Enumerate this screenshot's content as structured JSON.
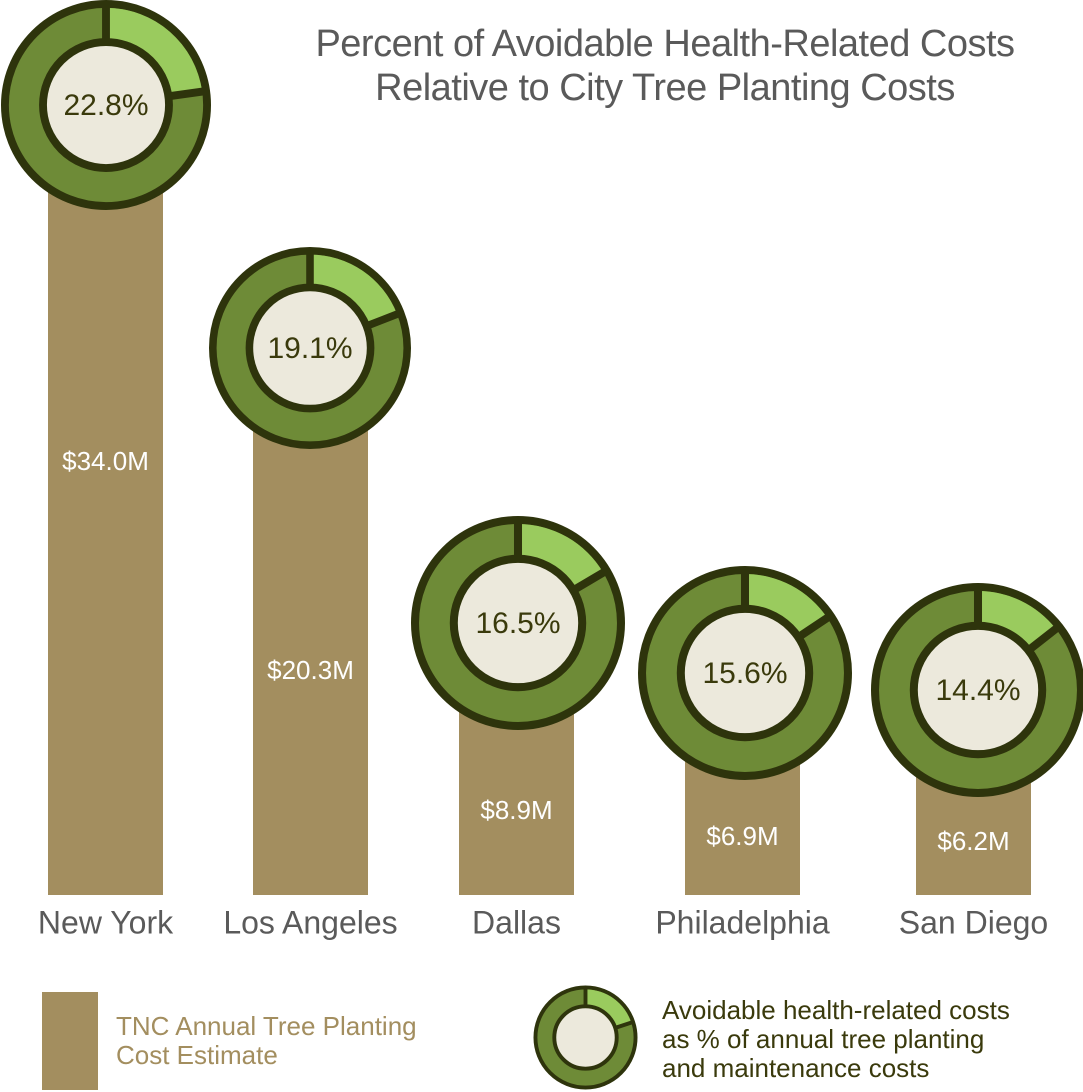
{
  "chart_data": {
    "type": "bar",
    "title": "Percent of Avoidable Health-Related Costs Relative to City Tree Planting Costs",
    "title_lines": [
      "Percent of Avoidable Health-Related Costs",
      "Relative to City Tree Planting Costs"
    ],
    "xlabel": "",
    "ylabel": "",
    "categories": [
      "New York",
      "Los Angeles",
      "Dallas",
      "Philadelphia",
      "San Diego"
    ],
    "series": [
      {
        "name": "TNC Annual Tree Planting Cost Estimate",
        "unit": "$M",
        "values": [
          34.0,
          20.3,
          8.9,
          6.9,
          6.2
        ],
        "labels": [
          "$34.0M",
          "$20.3M",
          "$8.9M",
          "$6.9M",
          "$6.2M"
        ]
      },
      {
        "name": "Avoidable health-related costs as % of annual tree planting and maintenance costs",
        "type": "donut",
        "unit": "%",
        "values": [
          22.8,
          19.1,
          16.5,
          15.6,
          14.4
        ],
        "labels": [
          "22.8%",
          "19.1%",
          "16.5%",
          "15.6%",
          "14.4%"
        ]
      }
    ],
    "legend": {
      "placement": "bottom",
      "items": [
        {
          "label_lines": [
            "TNC Annual Tree Planting",
            "Cost Estimate"
          ],
          "symbol": "bar"
        },
        {
          "label_lines": [
            "Avoidable health-related costs",
            "as % of annual tree planting",
            "and maintenance costs"
          ],
          "symbol": "donut",
          "example_percent": 20
        }
      ]
    },
    "grid": false,
    "axes_visible": false
  },
  "colors": {
    "bar": "#a38e5f",
    "donut_ring": "#6e8b37",
    "donut_highlight": "#9acb5e",
    "donut_outline": "#2e340c",
    "donut_center": "#ece9dc",
    "percent_text": "#3a3a0c",
    "bar_label_text": "#ffffff",
    "category_text": "#5a5a5a",
    "title_text": "#5a5a5a",
    "legend_bar_text": "#a38e5f",
    "legend_donut_text": "#3a3a0c"
  }
}
